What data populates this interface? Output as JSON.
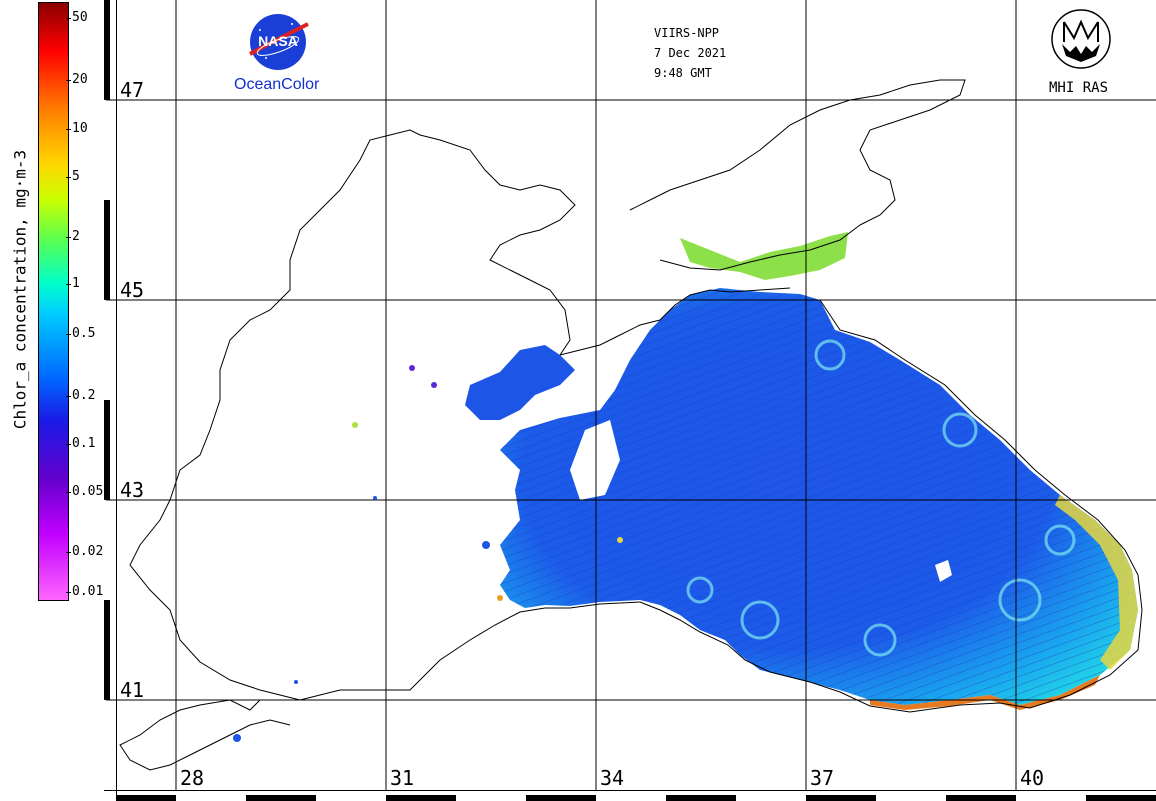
{
  "colorbar": {
    "title": "Chlor_a concentration, mg·m-3",
    "ticks": [
      "50",
      "20",
      "10",
      "5",
      "2",
      "1",
      "0.5",
      "0.2",
      "0.1",
      "0.05",
      "0.02",
      "0.01"
    ]
  },
  "header": {
    "satellite": "VIIRS-NPP",
    "date": "7 Dec 2021",
    "time": "9:48 GMT"
  },
  "logos": {
    "nasa_text": "NASA",
    "oceancolor_text": "OceanColor",
    "mhi_text": "MHI RAS"
  },
  "grid": {
    "latitudes": [
      "47",
      "45",
      "43",
      "41"
    ],
    "longitudes": [
      "28",
      "31",
      "34",
      "37",
      "40"
    ]
  },
  "colors": {
    "land": "#ffffff",
    "coast": "#000000",
    "chl_low": "#1a4fe6",
    "chl_mid": "#22c8ee",
    "chl_high": "#ffd700"
  }
}
